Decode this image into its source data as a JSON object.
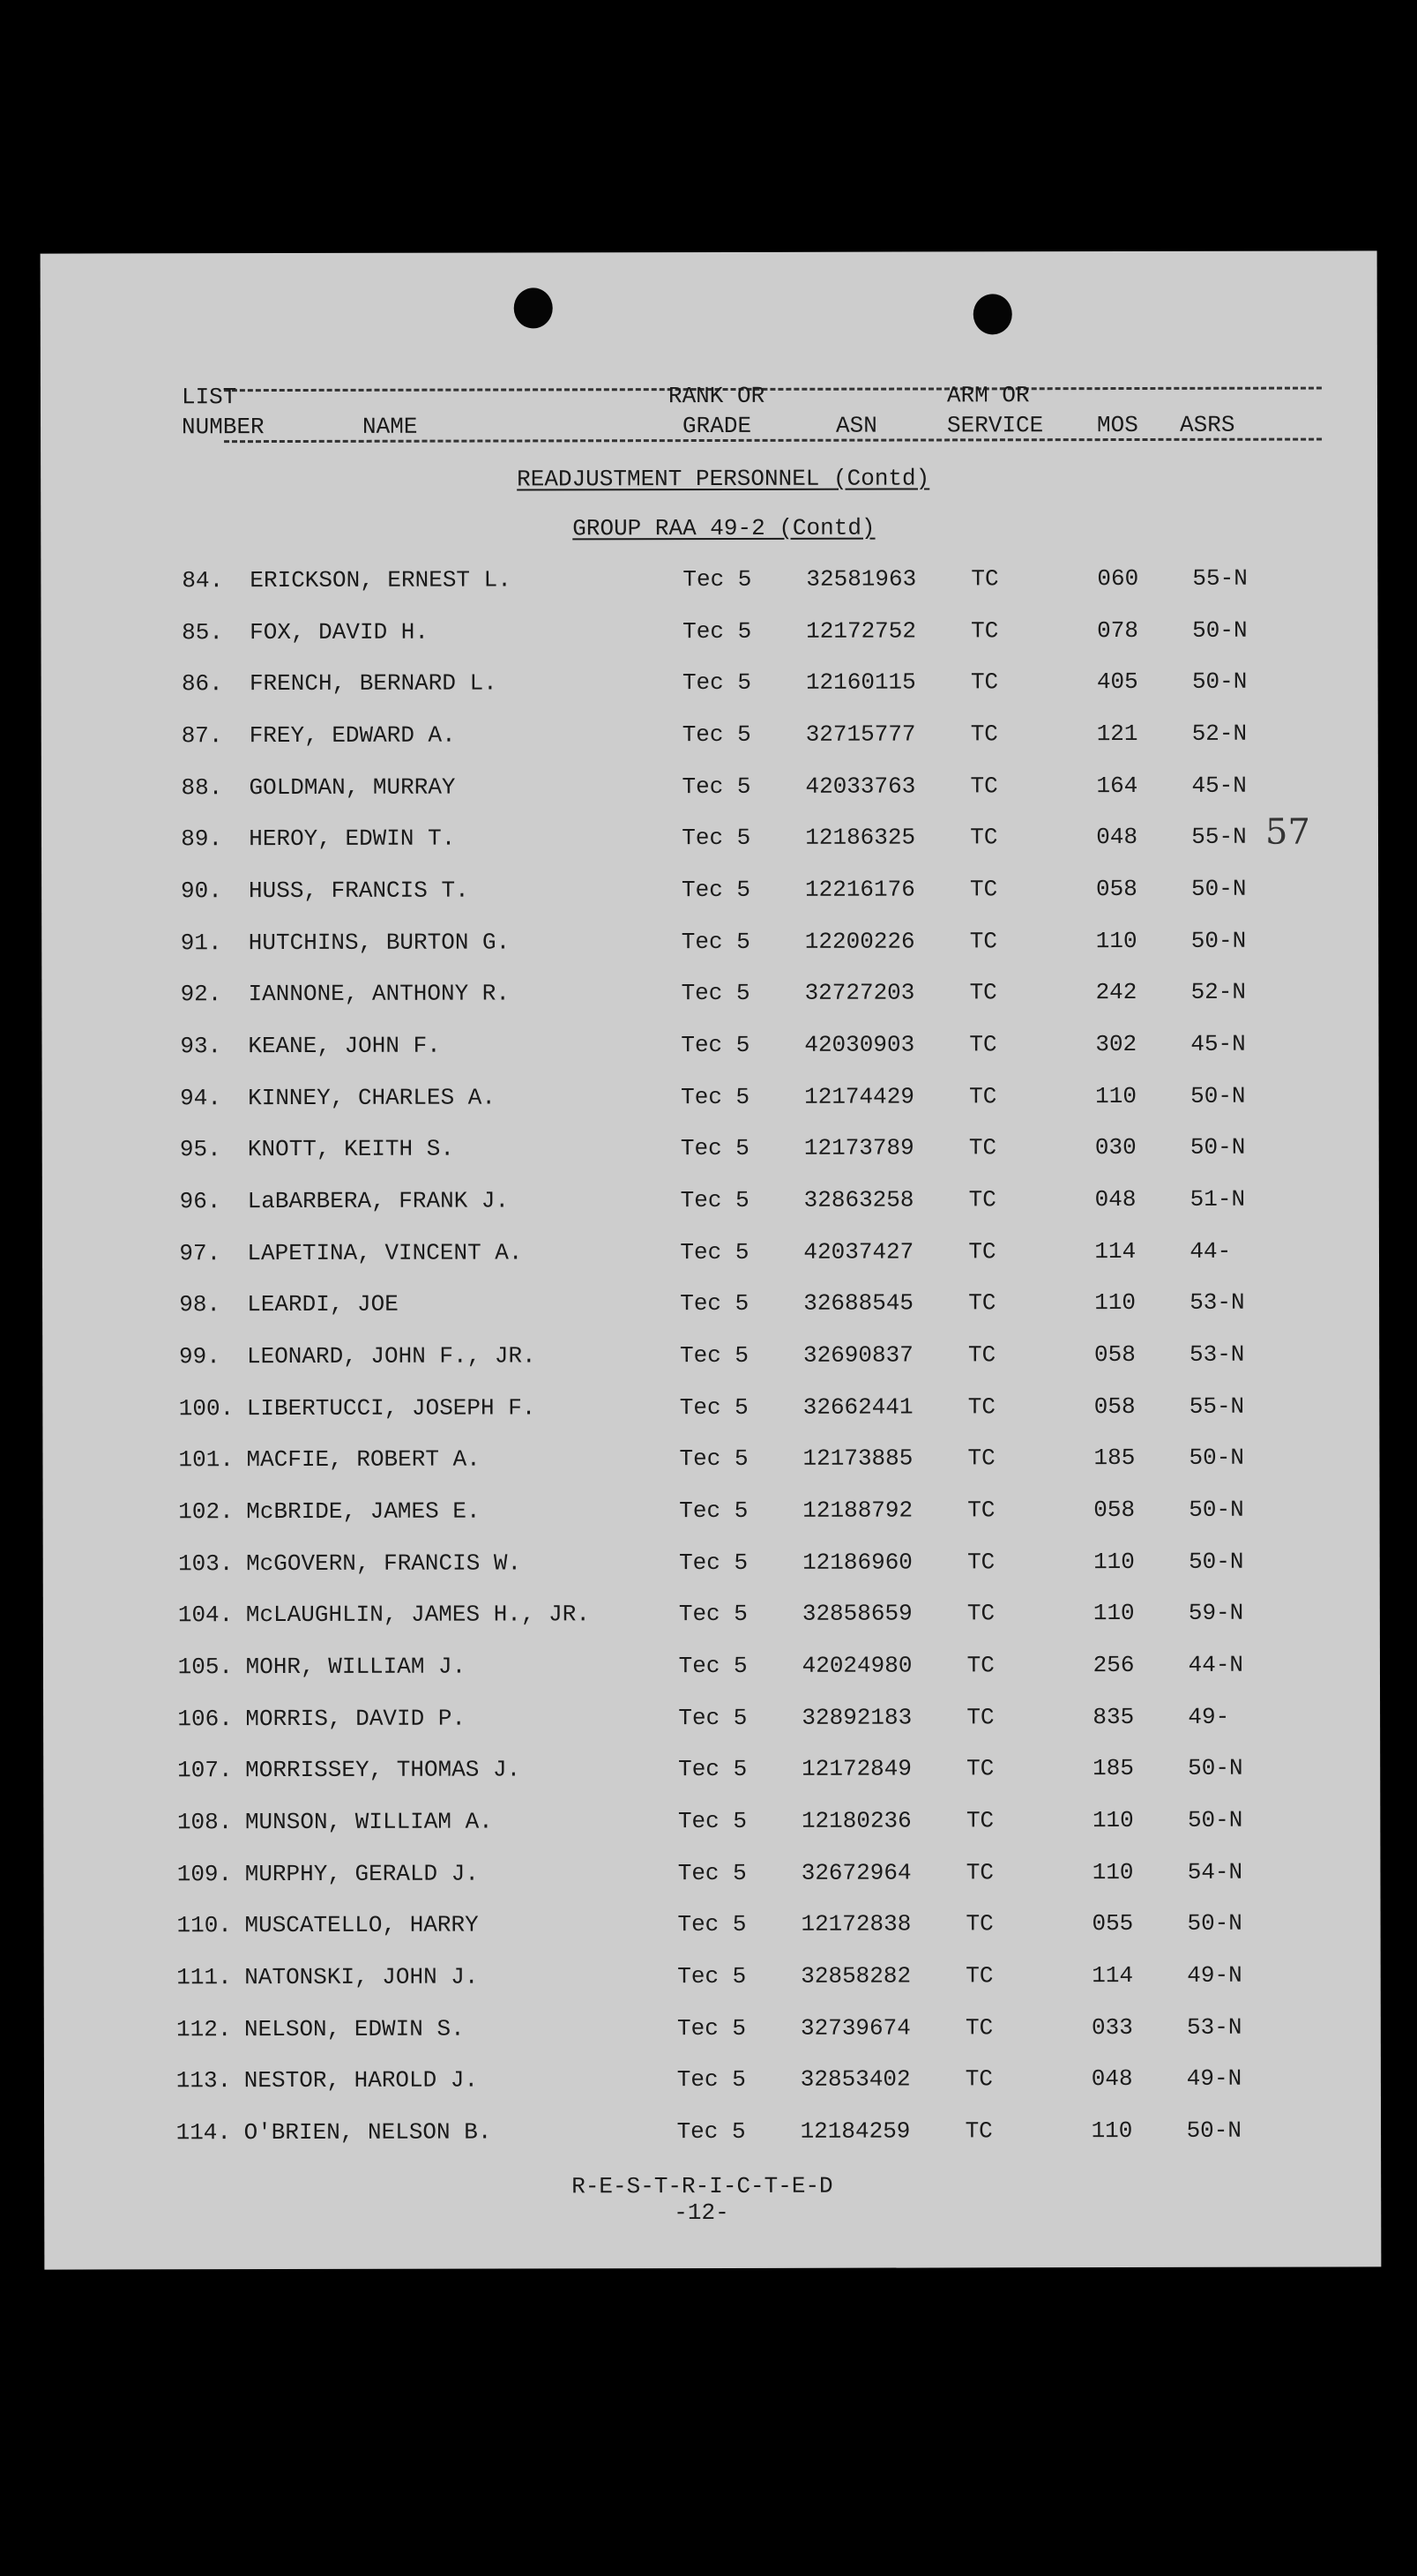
{
  "header": {
    "col_list_line1": "LIST",
    "col_list_line2": "NUMBER",
    "col_name": "NAME",
    "col_rank_line1": "RANK OR",
    "col_rank_line2": "GRADE",
    "col_asn": "ASN",
    "col_arm_line1": "ARM OR",
    "col_arm_line2": "SERVICE",
    "col_mos": "MOS",
    "col_asrs": "ASRS"
  },
  "section_title": "READJUSTMENT PERSONNEL (Contd)",
  "group_title": "GROUP RAA 49-2 (Contd)",
  "margin_note": "57",
  "rows": [
    {
      "no": "84.",
      "name": "ERICKSON, ERNEST L.",
      "rank": "Tec 5",
      "asn": "32581963",
      "arm": "TC",
      "mos": "060",
      "asrs": "55-N"
    },
    {
      "no": "85.",
      "name": "FOX, DAVID H.",
      "rank": "Tec 5",
      "asn": "12172752",
      "arm": "TC",
      "mos": "078",
      "asrs": "50-N"
    },
    {
      "no": "86.",
      "name": "FRENCH, BERNARD L.",
      "rank": "Tec 5",
      "asn": "12160115",
      "arm": "TC",
      "mos": "405",
      "asrs": "50-N"
    },
    {
      "no": "87.",
      "name": "FREY, EDWARD A.",
      "rank": "Tec 5",
      "asn": "32715777",
      "arm": "TC",
      "mos": "121",
      "asrs": "52-N"
    },
    {
      "no": "88.",
      "name": "GOLDMAN, MURRAY",
      "rank": "Tec 5",
      "asn": "42033763",
      "arm": "TC",
      "mos": "164",
      "asrs": "45-N"
    },
    {
      "no": "89.",
      "name": "HEROY, EDWIN T.",
      "rank": "Tec 5",
      "asn": "12186325",
      "arm": "TC",
      "mos": "048",
      "asrs": "55-N"
    },
    {
      "no": "90.",
      "name": "HUSS, FRANCIS T.",
      "rank": "Tec 5",
      "asn": "12216176",
      "arm": "TC",
      "mos": "058",
      "asrs": "50-N"
    },
    {
      "no": "91.",
      "name": "HUTCHINS, BURTON G.",
      "rank": "Tec 5",
      "asn": "12200226",
      "arm": "TC",
      "mos": "110",
      "asrs": "50-N"
    },
    {
      "no": "92.",
      "name": "IANNONE, ANTHONY R.",
      "rank": "Tec 5",
      "asn": "32727203",
      "arm": "TC",
      "mos": "242",
      "asrs": "52-N"
    },
    {
      "no": "93.",
      "name": "KEANE, JOHN F.",
      "rank": "Tec 5",
      "asn": "42030903",
      "arm": "TC",
      "mos": "302",
      "asrs": "45-N"
    },
    {
      "no": "94.",
      "name": "KINNEY, CHARLES A.",
      "rank": "Tec 5",
      "asn": "12174429",
      "arm": "TC",
      "mos": "110",
      "asrs": "50-N"
    },
    {
      "no": "95.",
      "name": "KNOTT, KEITH S.",
      "rank": "Tec 5",
      "asn": "12173789",
      "arm": "TC",
      "mos": "030",
      "asrs": "50-N"
    },
    {
      "no": "96.",
      "name": "LaBARBERA, FRANK J.",
      "rank": "Tec 5",
      "asn": "32863258",
      "arm": "TC",
      "mos": "048",
      "asrs": "51-N"
    },
    {
      "no": "97.",
      "name": "LAPETINA, VINCENT A.",
      "rank": "Tec 5",
      "asn": "42037427",
      "arm": "TC",
      "mos": "114",
      "asrs": "44-"
    },
    {
      "no": "98.",
      "name": "LEARDI, JOE",
      "rank": "Tec 5",
      "asn": "32688545",
      "arm": "TC",
      "mos": "110",
      "asrs": "53-N"
    },
    {
      "no": "99.",
      "name": "LEONARD, JOHN F., JR.",
      "rank": "Tec 5",
      "asn": "32690837",
      "arm": "TC",
      "mos": "058",
      "asrs": "53-N"
    },
    {
      "no": "100.",
      "name": "LIBERTUCCI, JOSEPH F.",
      "rank": "Tec 5",
      "asn": "32662441",
      "arm": "TC",
      "mos": "058",
      "asrs": "55-N"
    },
    {
      "no": "101.",
      "name": "MACFIE, ROBERT A.",
      "rank": "Tec 5",
      "asn": "12173885",
      "arm": "TC",
      "mos": "185",
      "asrs": "50-N"
    },
    {
      "no": "102.",
      "name": "McBRIDE, JAMES E.",
      "rank": "Tec 5",
      "asn": "12188792",
      "arm": "TC",
      "mos": "058",
      "asrs": "50-N"
    },
    {
      "no": "103.",
      "name": "McGOVERN, FRANCIS W.",
      "rank": "Tec 5",
      "asn": "12186960",
      "arm": "TC",
      "mos": "110",
      "asrs": "50-N"
    },
    {
      "no": "104.",
      "name": "McLAUGHLIN, JAMES H., JR.",
      "rank": "Tec 5",
      "asn": "32858659",
      "arm": "TC",
      "mos": "110",
      "asrs": "59-N"
    },
    {
      "no": "105.",
      "name": "MOHR, WILLIAM J.",
      "rank": "Tec 5",
      "asn": "42024980",
      "arm": "TC",
      "mos": "256",
      "asrs": "44-N"
    },
    {
      "no": "106.",
      "name": "MORRIS, DAVID P.",
      "rank": "Tec 5",
      "asn": "32892183",
      "arm": "TC",
      "mos": "835",
      "asrs": "49-"
    },
    {
      "no": "107.",
      "name": "MORRISSEY, THOMAS J.",
      "rank": "Tec 5",
      "asn": "12172849",
      "arm": "TC",
      "mos": "185",
      "asrs": "50-N"
    },
    {
      "no": "108.",
      "name": "MUNSON, WILLIAM A.",
      "rank": "Tec 5",
      "asn": "12180236",
      "arm": "TC",
      "mos": "110",
      "asrs": "50-N"
    },
    {
      "no": "109.",
      "name": "MURPHY, GERALD J.",
      "rank": "Tec 5",
      "asn": "32672964",
      "arm": "TC",
      "mos": "110",
      "asrs": "54-N"
    },
    {
      "no": "110.",
      "name": "MUSCATELLO, HARRY",
      "rank": "Tec 5",
      "asn": "12172838",
      "arm": "TC",
      "mos": "055",
      "asrs": "50-N"
    },
    {
      "no": "111.",
      "name": "NATONSKI, JOHN J.",
      "rank": "Tec 5",
      "asn": "32858282",
      "arm": "TC",
      "mos": "114",
      "asrs": "49-N"
    },
    {
      "no": "112.",
      "name": "NELSON, EDWIN S.",
      "rank": "Tec 5",
      "asn": "32739674",
      "arm": "TC",
      "mos": "033",
      "asrs": "53-N"
    },
    {
      "no": "113.",
      "name": "NESTOR, HAROLD J.",
      "rank": "Tec 5",
      "asn": "32853402",
      "arm": "TC",
      "mos": "048",
      "asrs": "49-N"
    },
    {
      "no": "114.",
      "name": "O'BRIEN, NELSON B.",
      "rank": "Tec 5",
      "asn": "12184259",
      "arm": "TC",
      "mos": "110",
      "asrs": "50-N"
    }
  ],
  "footer": {
    "classification": "R-E-S-T-R-I-C-T-E-D",
    "page_number": "-12-"
  }
}
